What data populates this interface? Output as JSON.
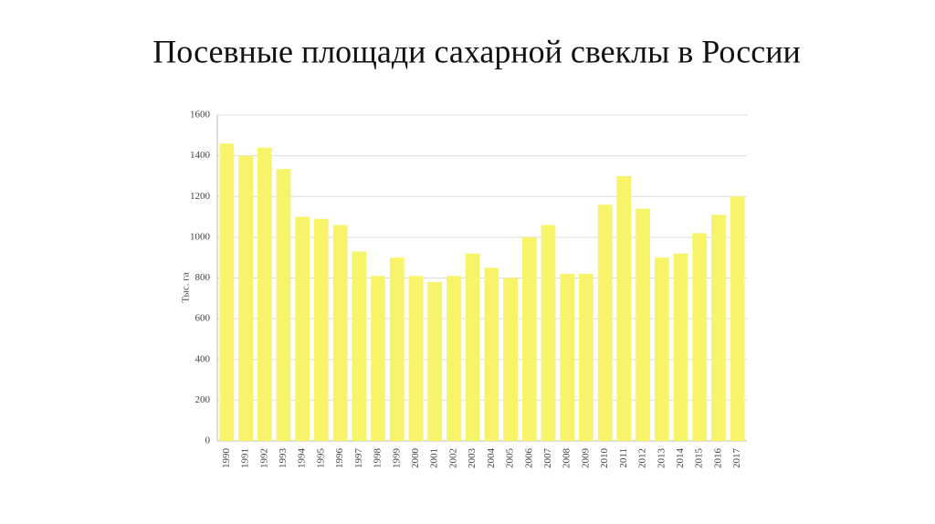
{
  "chart_data": {
    "type": "bar",
    "title": "Посевные площади сахарной свеклы в России",
    "ylabel": "Тыс. га",
    "categories": [
      "1990",
      "1991",
      "1992",
      "1993",
      "1994",
      "1995",
      "1996",
      "1997",
      "1998",
      "1999",
      "2000",
      "2001",
      "2002",
      "2003",
      "2004",
      "2005",
      "2006",
      "2007",
      "2008",
      "2009",
      "2010",
      "2011",
      "2012",
      "2013",
      "2014",
      "2015",
      "2016",
      "2017"
    ],
    "values": [
      1460,
      1400,
      1440,
      1335,
      1100,
      1090,
      1060,
      930,
      810,
      900,
      810,
      780,
      810,
      920,
      850,
      800,
      1000,
      1060,
      820,
      820,
      1160,
      1300,
      1140,
      900,
      920,
      1020,
      1110,
      1200
    ],
    "color": "#f8f46a",
    "ylim": [
      0,
      1600
    ],
    "yticks": [
      0,
      200,
      400,
      600,
      800,
      1000,
      1200,
      1400,
      1600
    ],
    "grid": true
  }
}
